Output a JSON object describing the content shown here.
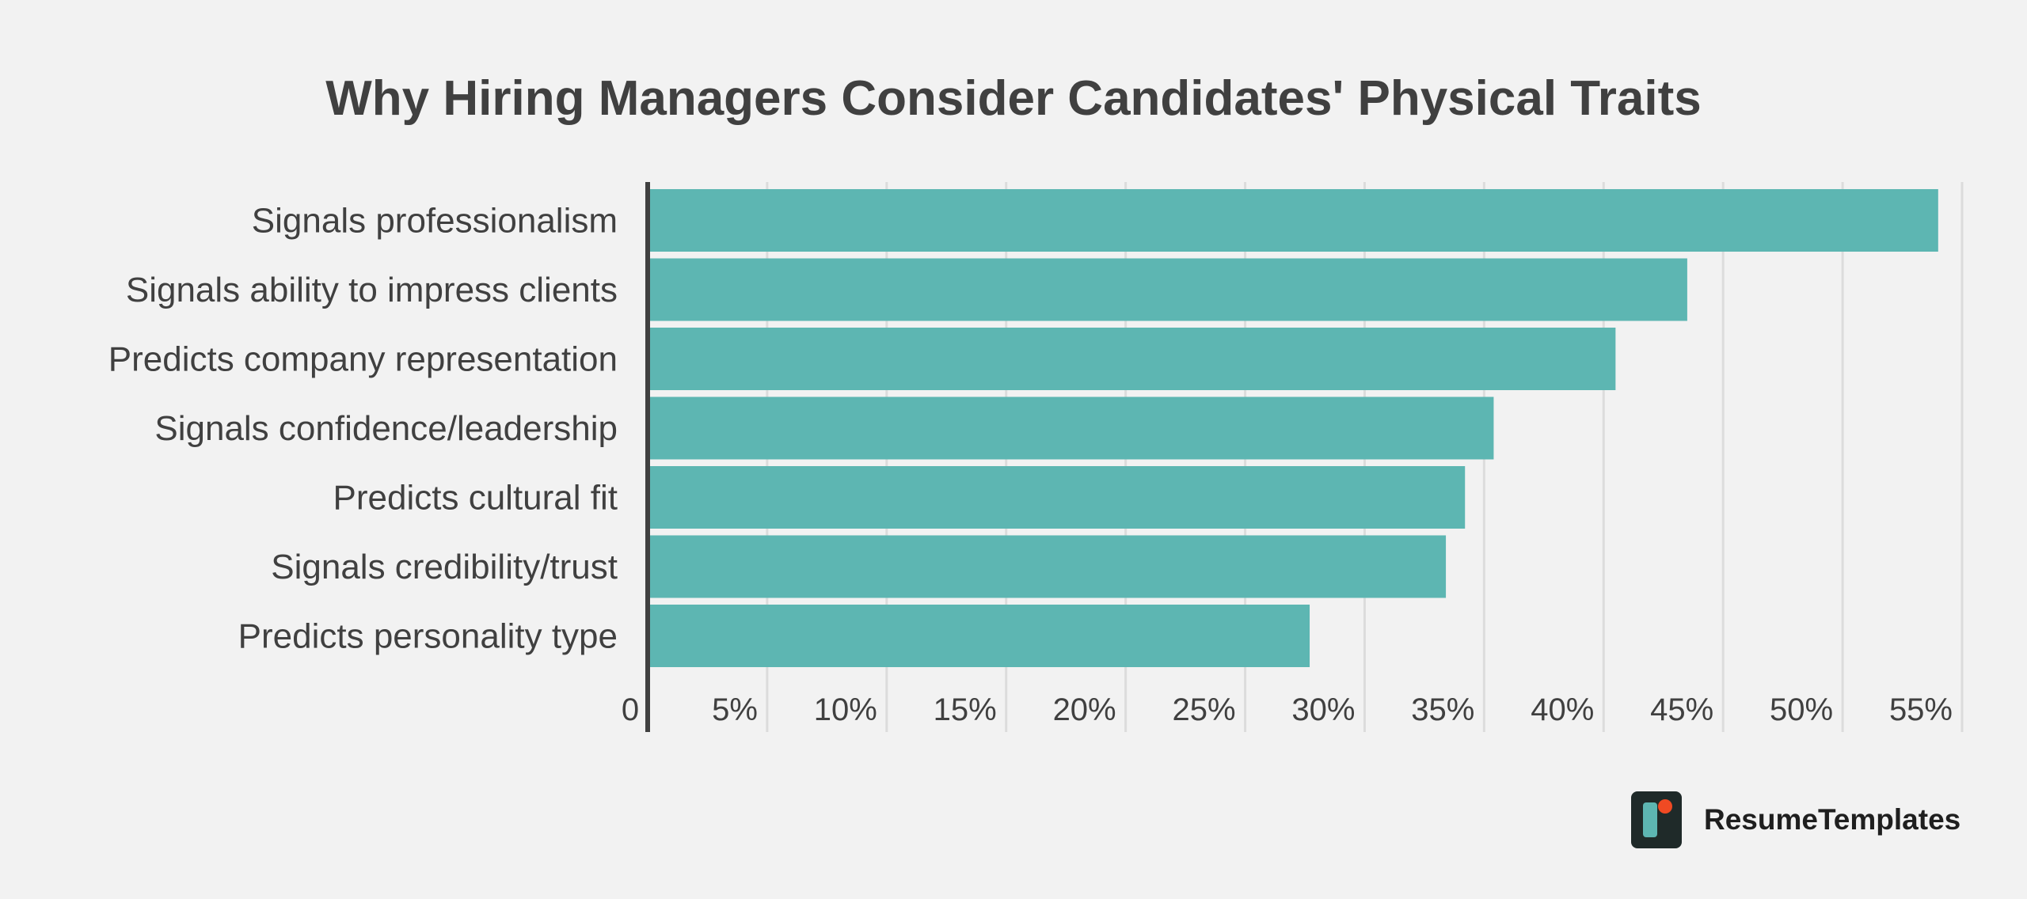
{
  "chart_data": {
    "type": "bar",
    "orientation": "horizontal",
    "title": "Why Hiring Managers Consider Candidates' Physical Traits",
    "categories": [
      "Signals professionalism",
      "Signals ability to impress clients",
      "Predicts company representation",
      "Signals confidence/leadership",
      "Predicts cultural fit",
      "Signals credibility/trust",
      "Predicts personality type"
    ],
    "values": [
      54,
      43.5,
      40.5,
      35.4,
      34.2,
      33.4,
      27.7
    ],
    "xlim": [
      0,
      55
    ],
    "x_ticks": [
      0,
      5,
      10,
      15,
      20,
      25,
      30,
      35,
      40,
      45,
      50,
      55
    ],
    "x_tick_labels": [
      "0",
      "5%",
      "10%",
      "15%",
      "20%",
      "25%",
      "30%",
      "35%",
      "40%",
      "45%",
      "50%",
      "55%"
    ],
    "xlabel": "",
    "ylabel": "",
    "grid": true,
    "bar_color": "#5db6b2",
    "grid_color": "#dcdcdc",
    "axis_color": "#404040",
    "text_color": "#404040"
  },
  "brand": {
    "name": "ResumeTemplates",
    "icon": "resumetemplates-logo-icon"
  }
}
